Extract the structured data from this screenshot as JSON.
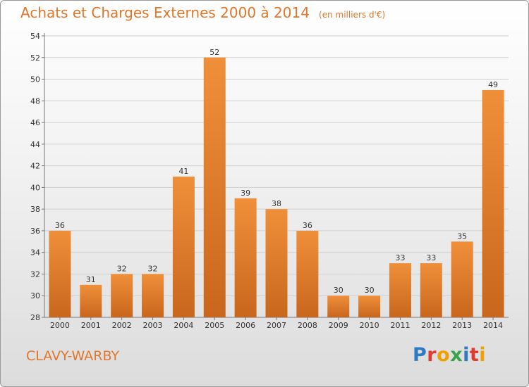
{
  "title": "Achats et Charges Externes 2000 à 2014",
  "unit": "(en milliers d'€)",
  "commune": "CLAVY-WARBY",
  "logo": {
    "text": "Proxiti",
    "colors": [
      "#2e7bc4",
      "#e23a2f",
      "#f0a000",
      "#3aa34a",
      "#2e7bc4",
      "#e23a2f",
      "#f0a000"
    ]
  },
  "colors": {
    "bar": "#f08f3a",
    "bar_dark": "#c8671d",
    "title": "#e0772a"
  },
  "chart_data": {
    "type": "bar",
    "title": "Achats et Charges Externes 2000 à 2014",
    "xlabel": "",
    "ylabel": "",
    "categories": [
      "2000",
      "2001",
      "2002",
      "2003",
      "2004",
      "2005",
      "2006",
      "2007",
      "2008",
      "2009",
      "2010",
      "2011",
      "2012",
      "2013",
      "2014"
    ],
    "values": [
      36,
      31,
      32,
      32,
      41,
      52,
      39,
      38,
      36,
      30,
      30,
      33,
      33,
      35,
      49
    ],
    "ylim": [
      28,
      54
    ],
    "yticks": [
      28,
      30,
      32,
      34,
      36,
      38,
      40,
      42,
      44,
      46,
      48,
      50,
      52,
      54
    ],
    "grid": true
  }
}
